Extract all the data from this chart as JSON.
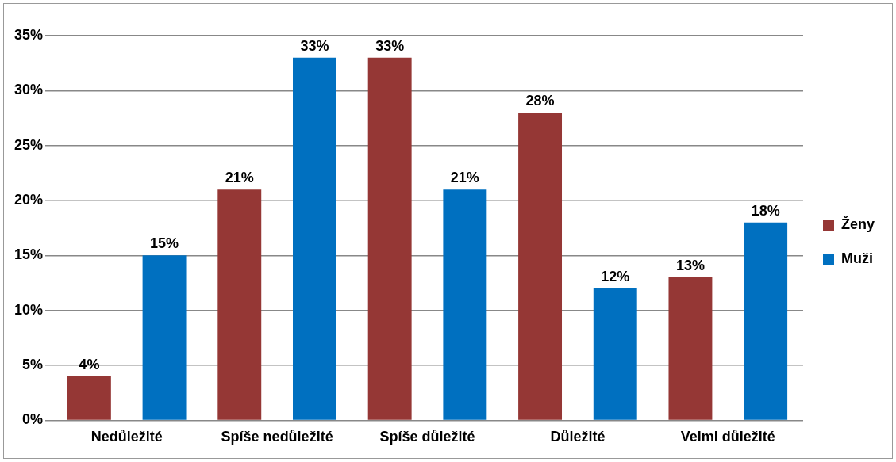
{
  "chart_data": {
    "type": "bar",
    "categories": [
      "Nedůležité",
      "Spíše nedůležité",
      "Spíše důležité",
      "Důležité",
      "Velmi důležité"
    ],
    "series": [
      {
        "name": "Ženy",
        "color": "#953735",
        "values": [
          4,
          21,
          33,
          28,
          13
        ],
        "value_labels": [
          "4%",
          "21%",
          "33%",
          "28%",
          "13%"
        ]
      },
      {
        "name": "Muži",
        "color": "#0070c0",
        "values": [
          15,
          33,
          21,
          12,
          18
        ],
        "value_labels": [
          "15%",
          "33%",
          "21%",
          "12%",
          "18%"
        ]
      }
    ],
    "ylim": [
      0,
      35
    ],
    "yticks": [
      {
        "value": 0,
        "label": "0%"
      },
      {
        "value": 5,
        "label": "5%"
      },
      {
        "value": 10,
        "label": "10%"
      },
      {
        "value": 15,
        "label": "15%"
      },
      {
        "value": 20,
        "label": "20%"
      },
      {
        "value": 25,
        "label": "25%"
      },
      {
        "value": 30,
        "label": "30%"
      },
      {
        "value": 35,
        "label": "35%"
      }
    ],
    "grid": "y",
    "legend": "right"
  }
}
